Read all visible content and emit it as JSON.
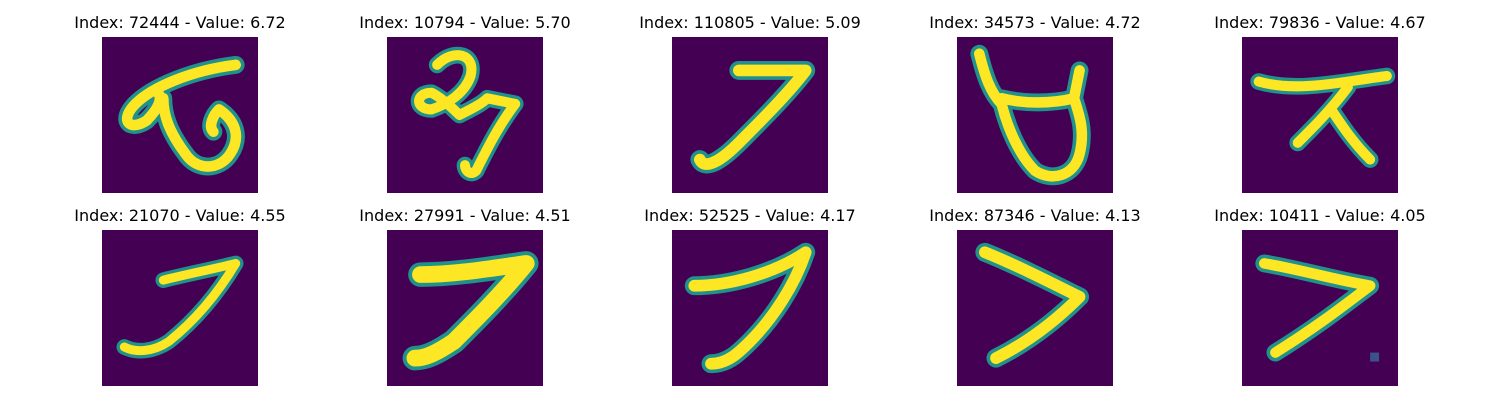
{
  "grid": {
    "rows": 2,
    "cols": 5,
    "colormap": "viridis",
    "background_color": "#440154",
    "stroke_color": "#fde725",
    "edge_color": "#21918c"
  },
  "panels": [
    {
      "title": "Index: 72444 - Value: 6.72",
      "index": 72444,
      "value": 6.72,
      "digit_shape": "loop-scribble"
    },
    {
      "title": "Index: 10794 - Value: 5.70",
      "index": 10794,
      "value": 5.7,
      "digit_shape": "scribbled-loop"
    },
    {
      "title": "Index: 110805 - Value: 5.09",
      "index": 110805,
      "value": 5.09,
      "digit_shape": "seven"
    },
    {
      "title": "Index: 34573 - Value: 4.72",
      "index": 34573,
      "value": 4.72,
      "digit_shape": "u-loop"
    },
    {
      "title": "Index: 79836 - Value: 4.67",
      "index": 79836,
      "value": 4.67,
      "digit_shape": "x-cross"
    },
    {
      "title": "Index: 21070 - Value: 4.55",
      "index": 21070,
      "value": 4.55,
      "digit_shape": "seven"
    },
    {
      "title": "Index: 27991 - Value: 4.51",
      "index": 27991,
      "value": 4.51,
      "digit_shape": "seven"
    },
    {
      "title": "Index: 52525 - Value: 4.17",
      "index": 52525,
      "value": 4.17,
      "digit_shape": "seven"
    },
    {
      "title": "Index: 87346 - Value: 4.13",
      "index": 87346,
      "value": 4.13,
      "digit_shape": "seven"
    },
    {
      "title": "Index: 10411 - Value: 4.05",
      "index": 10411,
      "value": 4.05,
      "digit_shape": "seven"
    }
  ]
}
